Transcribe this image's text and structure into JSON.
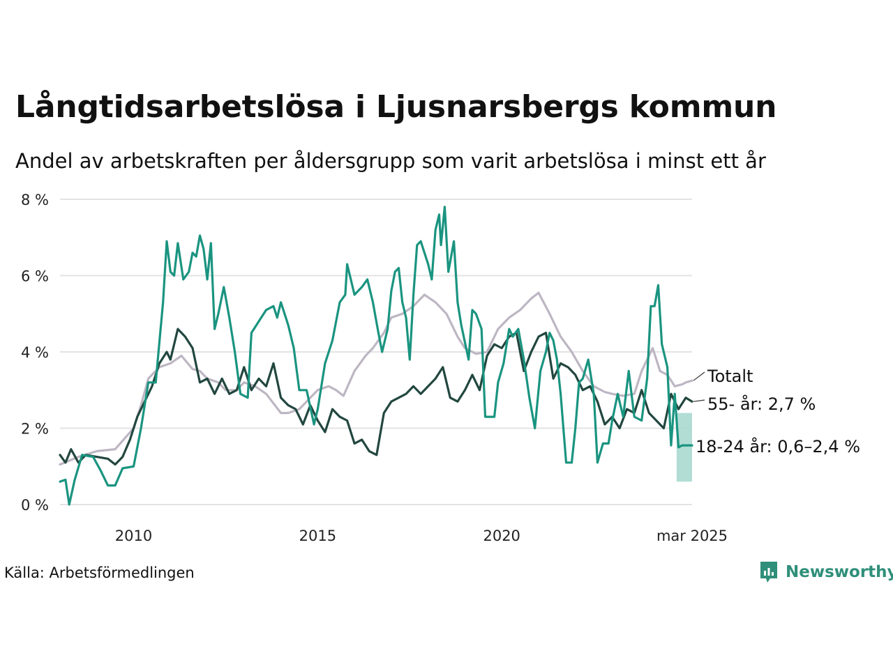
{
  "title": "Långtidsarbetslösa i Ljusnarsbergs kommun",
  "subtitle": "Andel av arbetskraften per åldersgrupp som varit arbetslösa i minst ett år",
  "source": "Källa: Arbetsförmedlingen",
  "brand": {
    "name": "Newsworthy",
    "color": "#2f8f7a",
    "icon": "newsworthy-logo-icon"
  },
  "chart_data": {
    "type": "line",
    "title": "Långtidsarbetslösa i Ljusnarsbergs kommun",
    "subtitle": "Andel av arbetskraften per åldersgrupp som varit arbetslösa i minst ett år",
    "y_ticks": [
      "0 %",
      "2 %",
      "4 %",
      "6 %",
      "8 %"
    ],
    "x_ticks": [
      "2010",
      "2015",
      "2020",
      "mar 2025"
    ],
    "ylim": [
      0,
      8
    ],
    "xlim": [
      2008.0,
      2025.17
    ],
    "grid": true,
    "series": [
      {
        "name": "Totalt",
        "label": "Totalt",
        "color": "#bdb6c3",
        "points": [
          [
            2008.0,
            1.05
          ],
          [
            2008.5,
            1.25
          ],
          [
            2009.0,
            1.4
          ],
          [
            2009.5,
            1.45
          ],
          [
            2010.0,
            2.0
          ],
          [
            2010.2,
            2.6
          ],
          [
            2010.4,
            3.3
          ],
          [
            2010.7,
            3.6
          ],
          [
            2011.0,
            3.7
          ],
          [
            2011.3,
            3.9
          ],
          [
            2011.6,
            3.55
          ],
          [
            2011.8,
            3.5
          ],
          [
            2012.0,
            3.3
          ],
          [
            2012.3,
            3.2
          ],
          [
            2012.5,
            3.0
          ],
          [
            2012.8,
            3.0
          ],
          [
            2013.0,
            3.2
          ],
          [
            2013.3,
            3.1
          ],
          [
            2013.6,
            2.9
          ],
          [
            2014.0,
            2.4
          ],
          [
            2014.2,
            2.4
          ],
          [
            2014.5,
            2.5
          ],
          [
            2014.8,
            2.8
          ],
          [
            2015.0,
            3.0
          ],
          [
            2015.3,
            3.1
          ],
          [
            2015.5,
            3.0
          ],
          [
            2015.7,
            2.85
          ],
          [
            2016.0,
            3.5
          ],
          [
            2016.3,
            3.9
          ],
          [
            2016.5,
            4.1
          ],
          [
            2016.8,
            4.5
          ],
          [
            2017.0,
            4.9
          ],
          [
            2017.3,
            5.0
          ],
          [
            2017.6,
            5.2
          ],
          [
            2017.9,
            5.5
          ],
          [
            2018.2,
            5.3
          ],
          [
            2018.5,
            5.0
          ],
          [
            2018.8,
            4.4
          ],
          [
            2019.0,
            4.1
          ],
          [
            2019.3,
            3.95
          ],
          [
            2019.6,
            4.0
          ],
          [
            2019.9,
            4.6
          ],
          [
            2020.2,
            4.9
          ],
          [
            2020.5,
            5.1
          ],
          [
            2020.8,
            5.4
          ],
          [
            2021.0,
            5.55
          ],
          [
            2021.3,
            5.0
          ],
          [
            2021.6,
            4.4
          ],
          [
            2021.9,
            4.0
          ],
          [
            2022.2,
            3.5
          ],
          [
            2022.5,
            3.1
          ],
          [
            2022.8,
            2.95
          ],
          [
            2023.0,
            2.9
          ],
          [
            2023.3,
            2.85
          ],
          [
            2023.6,
            2.9
          ],
          [
            2023.8,
            3.5
          ],
          [
            2024.0,
            3.9
          ],
          [
            2024.1,
            4.1
          ],
          [
            2024.3,
            3.5
          ],
          [
            2024.5,
            3.4
          ],
          [
            2024.7,
            3.1
          ],
          [
            2024.9,
            3.15
          ],
          [
            2025.0,
            3.2
          ],
          [
            2025.17,
            3.25
          ]
        ]
      },
      {
        "name": "55- år",
        "label": "55- år: 2,7 %",
        "color": "#22473f",
        "points": [
          [
            2008.0,
            1.3
          ],
          [
            2008.15,
            1.1
          ],
          [
            2008.3,
            1.45
          ],
          [
            2008.5,
            1.1
          ],
          [
            2008.7,
            1.3
          ],
          [
            2009.0,
            1.25
          ],
          [
            2009.3,
            1.2
          ],
          [
            2009.5,
            1.05
          ],
          [
            2009.7,
            1.25
          ],
          [
            2009.9,
            1.7
          ],
          [
            2010.1,
            2.3
          ],
          [
            2010.3,
            2.7
          ],
          [
            2010.5,
            3.1
          ],
          [
            2010.7,
            3.7
          ],
          [
            2010.9,
            4.0
          ],
          [
            2011.0,
            3.8
          ],
          [
            2011.2,
            4.6
          ],
          [
            2011.4,
            4.4
          ],
          [
            2011.6,
            4.1
          ],
          [
            2011.8,
            3.2
          ],
          [
            2012.0,
            3.3
          ],
          [
            2012.2,
            2.9
          ],
          [
            2012.4,
            3.3
          ],
          [
            2012.6,
            2.9
          ],
          [
            2012.8,
            3.0
          ],
          [
            2013.0,
            3.6
          ],
          [
            2013.2,
            3.0
          ],
          [
            2013.4,
            3.3
          ],
          [
            2013.6,
            3.1
          ],
          [
            2013.8,
            3.7
          ],
          [
            2014.0,
            2.8
          ],
          [
            2014.2,
            2.6
          ],
          [
            2014.4,
            2.5
          ],
          [
            2014.6,
            2.1
          ],
          [
            2014.8,
            2.6
          ],
          [
            2015.0,
            2.2
          ],
          [
            2015.2,
            1.9
          ],
          [
            2015.4,
            2.5
          ],
          [
            2015.6,
            2.3
          ],
          [
            2015.8,
            2.2
          ],
          [
            2016.0,
            1.6
          ],
          [
            2016.2,
            1.7
          ],
          [
            2016.4,
            1.4
          ],
          [
            2016.6,
            1.3
          ],
          [
            2016.8,
            2.4
          ],
          [
            2017.0,
            2.7
          ],
          [
            2017.2,
            2.8
          ],
          [
            2017.4,
            2.9
          ],
          [
            2017.6,
            3.1
          ],
          [
            2017.8,
            2.9
          ],
          [
            2018.0,
            3.1
          ],
          [
            2018.2,
            3.3
          ],
          [
            2018.4,
            3.6
          ],
          [
            2018.6,
            2.8
          ],
          [
            2018.8,
            2.7
          ],
          [
            2019.0,
            3.0
          ],
          [
            2019.2,
            3.4
          ],
          [
            2019.4,
            3.0
          ],
          [
            2019.6,
            3.9
          ],
          [
            2019.8,
            4.2
          ],
          [
            2020.0,
            4.1
          ],
          [
            2020.2,
            4.4
          ],
          [
            2020.4,
            4.5
          ],
          [
            2020.6,
            3.5
          ],
          [
            2020.8,
            4.0
          ],
          [
            2021.0,
            4.4
          ],
          [
            2021.2,
            4.5
          ],
          [
            2021.4,
            3.3
          ],
          [
            2021.6,
            3.7
          ],
          [
            2021.8,
            3.6
          ],
          [
            2022.0,
            3.4
          ],
          [
            2022.2,
            3.0
          ],
          [
            2022.4,
            3.1
          ],
          [
            2022.6,
            2.7
          ],
          [
            2022.8,
            2.1
          ],
          [
            2023.0,
            2.3
          ],
          [
            2023.2,
            2.0
          ],
          [
            2023.4,
            2.5
          ],
          [
            2023.6,
            2.4
          ],
          [
            2023.8,
            3.0
          ],
          [
            2024.0,
            2.4
          ],
          [
            2024.2,
            2.2
          ],
          [
            2024.4,
            2.0
          ],
          [
            2024.6,
            2.9
          ],
          [
            2024.8,
            2.5
          ],
          [
            2025.0,
            2.8
          ],
          [
            2025.17,
            2.7
          ]
        ]
      },
      {
        "name": "18-24 år",
        "label": "18-24 år: 0,6–2,4 %",
        "color": "#1a9480",
        "points": [
          [
            2008.0,
            0.6
          ],
          [
            2008.15,
            0.65
          ],
          [
            2008.25,
            0.0
          ],
          [
            2008.4,
            0.65
          ],
          [
            2008.6,
            1.3
          ],
          [
            2008.9,
            1.25
          ],
          [
            2009.1,
            0.9
          ],
          [
            2009.3,
            0.5
          ],
          [
            2009.5,
            0.5
          ],
          [
            2009.7,
            0.95
          ],
          [
            2010.0,
            1.0
          ],
          [
            2010.2,
            2.0
          ],
          [
            2010.4,
            3.2
          ],
          [
            2010.6,
            3.2
          ],
          [
            2010.8,
            5.3
          ],
          [
            2010.9,
            6.9
          ],
          [
            2011.0,
            6.1
          ],
          [
            2011.1,
            6.0
          ],
          [
            2011.2,
            6.85
          ],
          [
            2011.35,
            5.9
          ],
          [
            2011.5,
            6.1
          ],
          [
            2011.6,
            6.6
          ],
          [
            2011.7,
            6.5
          ],
          [
            2011.8,
            7.05
          ],
          [
            2011.9,
            6.7
          ],
          [
            2012.0,
            5.9
          ],
          [
            2012.1,
            6.85
          ],
          [
            2012.2,
            4.6
          ],
          [
            2012.3,
            5.0
          ],
          [
            2012.45,
            5.7
          ],
          [
            2012.6,
            4.9
          ],
          [
            2012.75,
            4.0
          ],
          [
            2012.9,
            2.9
          ],
          [
            2013.1,
            2.8
          ],
          [
            2013.2,
            4.5
          ],
          [
            2013.4,
            4.8
          ],
          [
            2013.6,
            5.1
          ],
          [
            2013.8,
            5.2
          ],
          [
            2013.9,
            4.9
          ],
          [
            2014.0,
            5.3
          ],
          [
            2014.2,
            4.7
          ],
          [
            2014.35,
            4.1
          ],
          [
            2014.5,
            3.0
          ],
          [
            2014.7,
            3.0
          ],
          [
            2014.9,
            2.1
          ],
          [
            2015.0,
            2.5
          ],
          [
            2015.2,
            3.7
          ],
          [
            2015.4,
            4.3
          ],
          [
            2015.6,
            5.3
          ],
          [
            2015.75,
            5.5
          ],
          [
            2015.8,
            6.3
          ],
          [
            2016.0,
            5.5
          ],
          [
            2016.2,
            5.7
          ],
          [
            2016.35,
            5.9
          ],
          [
            2016.5,
            5.3
          ],
          [
            2016.65,
            4.5
          ],
          [
            2016.75,
            4.0
          ],
          [
            2016.9,
            4.6
          ],
          [
            2017.0,
            5.6
          ],
          [
            2017.1,
            6.1
          ],
          [
            2017.2,
            6.2
          ],
          [
            2017.3,
            5.3
          ],
          [
            2017.4,
            4.9
          ],
          [
            2017.5,
            3.8
          ],
          [
            2017.6,
            5.5
          ],
          [
            2017.7,
            6.8
          ],
          [
            2017.8,
            6.9
          ],
          [
            2017.9,
            6.6
          ],
          [
            2018.0,
            6.3
          ],
          [
            2018.1,
            5.9
          ],
          [
            2018.2,
            7.2
          ],
          [
            2018.3,
            7.6
          ],
          [
            2018.35,
            6.8
          ],
          [
            2018.45,
            7.8
          ],
          [
            2018.55,
            6.1
          ],
          [
            2018.7,
            6.9
          ],
          [
            2018.8,
            5.3
          ],
          [
            2018.9,
            4.7
          ],
          [
            2019.1,
            3.8
          ],
          [
            2019.2,
            5.1
          ],
          [
            2019.3,
            5.0
          ],
          [
            2019.45,
            4.6
          ],
          [
            2019.55,
            2.3
          ],
          [
            2019.8,
            2.3
          ],
          [
            2019.9,
            3.2
          ],
          [
            2020.05,
            3.7
          ],
          [
            2020.2,
            4.6
          ],
          [
            2020.3,
            4.4
          ],
          [
            2020.45,
            4.6
          ],
          [
            2020.6,
            3.8
          ],
          [
            2020.75,
            2.8
          ],
          [
            2020.9,
            2.0
          ],
          [
            2021.05,
            3.5
          ],
          [
            2021.2,
            4.0
          ],
          [
            2021.3,
            4.5
          ],
          [
            2021.4,
            4.3
          ],
          [
            2021.5,
            3.8
          ],
          [
            2021.6,
            2.9
          ],
          [
            2021.75,
            1.1
          ],
          [
            2021.9,
            1.1
          ],
          [
            2022.0,
            2.0
          ],
          [
            2022.1,
            3.2
          ],
          [
            2022.2,
            3.3
          ],
          [
            2022.35,
            3.8
          ],
          [
            2022.5,
            2.9
          ],
          [
            2022.6,
            1.1
          ],
          [
            2022.75,
            1.6
          ],
          [
            2022.9,
            1.6
          ],
          [
            2023.0,
            2.2
          ],
          [
            2023.15,
            2.9
          ],
          [
            2023.3,
            2.3
          ],
          [
            2023.45,
            3.5
          ],
          [
            2023.6,
            2.3
          ],
          [
            2023.8,
            2.2
          ],
          [
            2023.95,
            3.3
          ],
          [
            2024.05,
            5.2
          ],
          [
            2024.15,
            5.2
          ],
          [
            2024.25,
            5.75
          ],
          [
            2024.35,
            4.2
          ],
          [
            2024.5,
            3.6
          ],
          [
            2024.6,
            1.55
          ],
          [
            2024.7,
            2.9
          ],
          [
            2024.8,
            1.5
          ],
          [
            2024.9,
            1.55
          ],
          [
            2025.0,
            1.55
          ],
          [
            2025.17,
            1.55
          ]
        ],
        "range_band": {
          "x": [
            2024.75,
            2025.17
          ],
          "low": 0.6,
          "high": 2.4,
          "color": "#a8d9cf"
        }
      }
    ]
  }
}
